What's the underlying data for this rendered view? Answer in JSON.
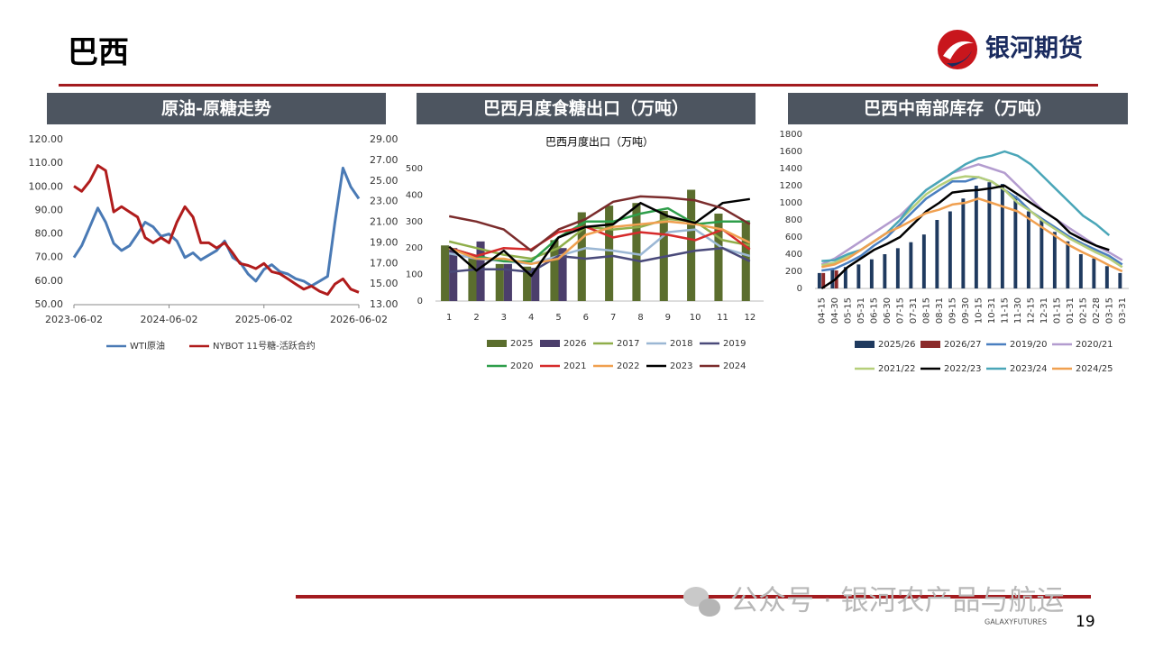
{
  "header": {
    "title": "巴西",
    "logo": "银河期货"
  },
  "footer": {
    "page": "19",
    "brand": "GALAXYFUTURES",
    "watermark": "公众号 · 银河农产品与航运"
  },
  "chart_data": [
    {
      "type": "line",
      "title": "原油-原糖走势",
      "x": [
        "2023-06-02",
        "2023-07-02",
        "2023-08-02",
        "2023-09-02",
        "2023-10-02",
        "2023-11-02",
        "2023-12-02",
        "2024-01-02",
        "2024-02-02",
        "2024-03-02",
        "2024-04-02",
        "2024-05-02",
        "2024-06-02",
        "2024-07-02",
        "2024-08-02",
        "2024-09-02",
        "2024-10-02",
        "2024-11-02",
        "2024-12-02",
        "2025-01-02",
        "2025-02-02",
        "2025-03-02",
        "2025-04-02",
        "2025-05-02",
        "2025-06-02",
        "2025-07-02",
        "2025-08-02",
        "2025-09-02",
        "2025-10-02",
        "2025-11-02",
        "2025-12-02",
        "2026-01-02",
        "2026-02-02",
        "2026-03-02",
        "2026-04-02",
        "2026-05-02",
        "2026-06-02"
      ],
      "xlim": [
        "2023-06-02",
        "2026-06-02"
      ],
      "xticks": [
        "2023-06-02",
        "2024-06-02",
        "2025-06-02",
        "2026-06-02"
      ],
      "ylim": [
        50,
        120
      ],
      "yticks": [
        {
          "value": 50,
          "label": "50.00"
        },
        {
          "value": 60,
          "label": "60.00"
        },
        {
          "value": 70,
          "label": "70.00"
        },
        {
          "value": 80,
          "label": "80.00"
        },
        {
          "value": 90,
          "label": "90.00"
        },
        {
          "value": 100,
          "label": "100.00"
        },
        {
          "value": 110,
          "label": "110.00"
        },
        {
          "value": 120,
          "label": "120.00"
        }
      ],
      "y2lim": [
        13,
        29
      ],
      "y2ticks": [
        {
          "value": 13,
          "label": "13.00"
        },
        {
          "value": 15,
          "label": "15.00"
        },
        {
          "value": 17,
          "label": "17.00"
        },
        {
          "value": 19,
          "label": "19.00"
        },
        {
          "value": 21,
          "label": "21.00"
        },
        {
          "value": 23,
          "label": "23.00"
        },
        {
          "value": 25,
          "label": "25.00"
        },
        {
          "value": 27,
          "label": "27.00"
        },
        {
          "value": 29,
          "label": "29.00"
        }
      ],
      "series": [
        {
          "name": "WTI原油",
          "color": "#4a7ab5",
          "kind": "line",
          "values": [
            70,
            75,
            83,
            91,
            85,
            76,
            73,
            75,
            80,
            85,
            83,
            79,
            80,
            77,
            70,
            72,
            69,
            71,
            73,
            77,
            70,
            68,
            63,
            60,
            65,
            67,
            64,
            63,
            61,
            60,
            58,
            60,
            62,
            85,
            108,
            100,
            95
          ]
        },
        {
          "name": "NYBOT 11号糖-活跃合约",
          "color": "#b01c1c",
          "kind": "line",
          "axis": "y2",
          "values": [
            24.5,
            24,
            25,
            26.5,
            26,
            22,
            22.5,
            22,
            21.5,
            19.5,
            19,
            19.5,
            19,
            21,
            22.5,
            21.5,
            19,
            19,
            18.5,
            19,
            18,
            17,
            16.8,
            16.5,
            17,
            16.2,
            16,
            15.5,
            15,
            14.5,
            14.8,
            14.3,
            14,
            15,
            15.5,
            14.5,
            14.2
          ]
        }
      ]
    },
    {
      "type": "combo",
      "title": "巴西月度食糖出口（万吨）",
      "subtitle": "巴西月度出口（万吨）",
      "categories": [
        "1",
        "2",
        "3",
        "4",
        "5",
        "6",
        "7",
        "8",
        "9",
        "10",
        "11",
        "12"
      ],
      "ylim": [
        0,
        500
      ],
      "yticks": [
        0,
        100,
        200,
        300,
        400,
        500
      ],
      "series": [
        {
          "name": "2025",
          "color": "#5b6e2e",
          "kind": "bar",
          "values": [
            210,
            170,
            140,
            130,
            230,
            335,
            360,
            370,
            340,
            420,
            330,
            300
          ]
        },
        {
          "name": "2026",
          "color": "#4b3e6b",
          "kind": "bar",
          "values": [
            200,
            225,
            140,
            125,
            200,
            null,
            null,
            null,
            null,
            null,
            null,
            null
          ]
        },
        {
          "name": "2017",
          "color": "#8fae4a",
          "kind": "line",
          "values": [
            225,
            200,
            175,
            160,
            200,
            280,
            270,
            280,
            310,
            300,
            230,
            210
          ]
        },
        {
          "name": "2018",
          "color": "#9bb7d4",
          "kind": "line",
          "values": [
            180,
            160,
            150,
            140,
            170,
            200,
            190,
            175,
            260,
            270,
            200,
            170
          ]
        },
        {
          "name": "2019",
          "color": "#4a4a7a",
          "kind": "line",
          "values": [
            110,
            120,
            120,
            110,
            170,
            160,
            170,
            150,
            170,
            190,
            200,
            150
          ]
        },
        {
          "name": "2020",
          "color": "#2e9e4a",
          "kind": "line",
          "values": [
            200,
            170,
            150,
            150,
            240,
            300,
            300,
            330,
            350,
            290,
            300,
            300
          ]
        },
        {
          "name": "2021",
          "color": "#d62b2b",
          "kind": "line",
          "values": [
            200,
            170,
            200,
            195,
            260,
            280,
            240,
            260,
            250,
            230,
            270,
            195
          ]
        },
        {
          "name": "2022",
          "color": "#f0a050",
          "kind": "line",
          "values": [
            200,
            160,
            160,
            140,
            160,
            250,
            280,
            290,
            300,
            290,
            270,
            220
          ]
        },
        {
          "name": "2023",
          "color": "#000000",
          "kind": "line",
          "values": [
            205,
            115,
            190,
            95,
            240,
            280,
            290,
            370,
            320,
            295,
            370,
            385
          ]
        },
        {
          "name": "2024",
          "color": "#7b2c2c",
          "kind": "line",
          "values": [
            320,
            300,
            270,
            190,
            270,
            310,
            375,
            395,
            390,
            380,
            350,
            290
          ]
        }
      ]
    },
    {
      "type": "combo",
      "title": "巴西中南部库存（万吨）",
      "categories": [
        "04-15",
        "04-30",
        "05-15",
        "05-31",
        "06-15",
        "06-30",
        "07-15",
        "07-31",
        "08-15",
        "08-31",
        "09-15",
        "09-30",
        "10-15",
        "10-31",
        "11-15",
        "11-30",
        "12-15",
        "12-31",
        "01-15",
        "01-31",
        "02-15",
        "02-28",
        "03-15",
        "03-31"
      ],
      "ylim": [
        0,
        1800
      ],
      "yticks": [
        0,
        200,
        400,
        600,
        800,
        1000,
        1200,
        1400,
        1600,
        1800
      ],
      "series": [
        {
          "name": "2025/26",
          "color": "#1f3a5f",
          "kind": "bar",
          "values": [
            180,
            230,
            250,
            280,
            340,
            400,
            470,
            540,
            630,
            800,
            900,
            1050,
            1200,
            1240,
            1220,
            1080,
            900,
            800,
            660,
            550,
            400,
            350,
            260,
            180
          ]
        },
        {
          "name": "2026/27",
          "color": "#8b2a2a",
          "kind": "bar",
          "values": [
            180,
            210,
            null,
            null,
            null,
            null,
            null,
            null,
            null,
            null,
            null,
            null,
            null,
            null,
            null,
            null,
            null,
            null,
            null,
            null,
            null,
            null,
            null,
            null
          ]
        },
        {
          "name": "2019/20",
          "color": "#4a7fc0",
          "kind": "line",
          "values": [
            210,
            230,
            300,
            380,
            500,
            600,
            750,
            900,
            1050,
            1150,
            1250,
            1250,
            1300,
            1250,
            1150,
            1050,
            900,
            800,
            700,
            600,
            520,
            450,
            380,
            280
          ]
        },
        {
          "name": "2020/21",
          "color": "#b39ccf",
          "kind": "line",
          "values": [
            280,
            350,
            450,
            550,
            650,
            750,
            850,
            1000,
            1150,
            1250,
            1350,
            1400,
            1450,
            1400,
            1350,
            1200,
            1050,
            900,
            800,
            700,
            600,
            500,
            420,
            330
          ]
        },
        {
          "name": "2021/22",
          "color": "#b6cf7a",
          "kind": "line",
          "values": [
            270,
            300,
            380,
            450,
            550,
            650,
            800,
            950,
            1100,
            1200,
            1280,
            1310,
            1300,
            1250,
            1150,
            1000,
            900,
            780,
            680,
            580,
            500,
            420,
            350,
            250
          ]
        },
        {
          "name": "2022/23",
          "color": "#000000",
          "kind": "line",
          "values": [
            0,
            100,
            250,
            350,
            450,
            520,
            600,
            750,
            900,
            1000,
            1120,
            1140,
            1150,
            1170,
            1200,
            1100,
            1000,
            900,
            800,
            650,
            570,
            500,
            450,
            null
          ]
        },
        {
          "name": "2023/24",
          "color": "#4aa6b8",
          "kind": "line",
          "values": [
            320,
            330,
            400,
            450,
            550,
            650,
            800,
            1000,
            1150,
            1250,
            1350,
            1450,
            1520,
            1550,
            1600,
            1550,
            1450,
            1300,
            1150,
            1000,
            850,
            750,
            620,
            null
          ]
        },
        {
          "name": "2024/25",
          "color": "#f0a050",
          "kind": "line",
          "values": [
            250,
            280,
            350,
            450,
            550,
            650,
            720,
            800,
            880,
            920,
            980,
            1000,
            1050,
            1000,
            950,
            900,
            800,
            700,
            600,
            500,
            420,
            350,
            270,
            200
          ]
        }
      ]
    }
  ]
}
